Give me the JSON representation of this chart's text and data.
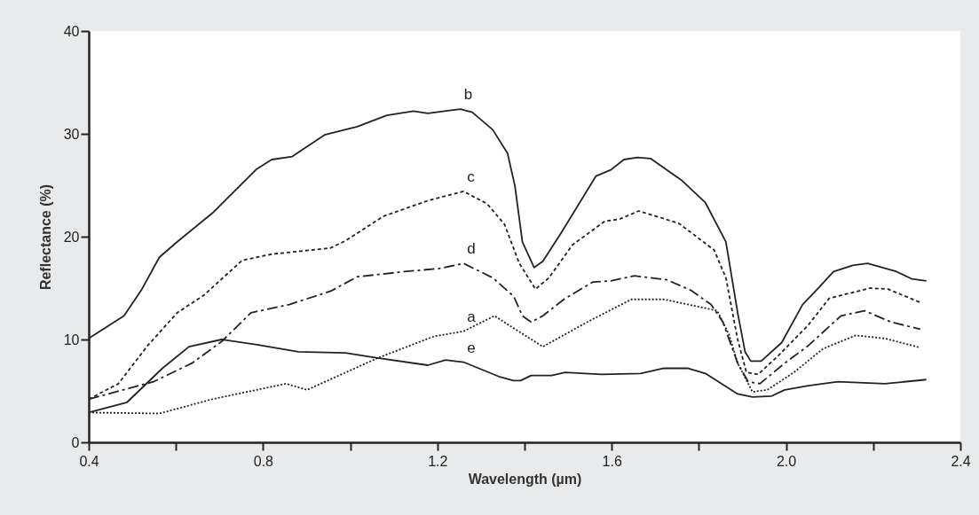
{
  "chart_data": {
    "type": "line",
    "xlabel": "Wavelength (µm)",
    "ylabel": "Reflectance (%)",
    "xlim": [
      0.4,
      2.4
    ],
    "ylim": [
      0,
      40
    ],
    "xticks": [
      0.4,
      {
        "value": 0.6,
        "label": null
      },
      0.8,
      {
        "value": 1.0,
        "label": null
      },
      1.2,
      {
        "value": 1.4,
        "label": null
      },
      1.6,
      {
        "value": 1.8,
        "label": null
      },
      {
        "value": 2.0,
        "label": "2.0"
      },
      {
        "value": 2.2,
        "label": null
      },
      {
        "value": 2.4,
        "label": "2.4"
      }
    ],
    "yticks": [
      0,
      10,
      20,
      30,
      40
    ],
    "grid": false,
    "marker": "none",
    "series": [
      {
        "name": "b",
        "color": "#222222",
        "line_style": "solid",
        "x": [
          0.4,
          0.481,
          0.522,
          0.562,
          0.603,
          0.684,
          0.786,
          0.82,
          0.867,
          0.941,
          1.016,
          1.084,
          1.145,
          1.178,
          1.232,
          1.253,
          1.28,
          1.327,
          1.361,
          1.378,
          1.395,
          1.422,
          1.442,
          1.483,
          1.564,
          1.598,
          1.628,
          1.659,
          1.689,
          1.76,
          1.815,
          1.862,
          1.889,
          1.906,
          1.919,
          1.943,
          1.99,
          2.038,
          2.072,
          2.109,
          2.153,
          2.187,
          2.254,
          2.288,
          2.322
        ],
        "values": [
          10.1,
          12.3,
          14.9,
          18.0,
          19.5,
          22.3,
          26.6,
          27.5,
          27.8,
          29.9,
          30.7,
          31.8,
          32.2,
          32.0,
          32.3,
          32.4,
          32.1,
          30.4,
          28.1,
          24.9,
          19.5,
          17.0,
          17.6,
          20.3,
          25.9,
          26.5,
          27.5,
          27.7,
          27.6,
          25.5,
          23.3,
          19.5,
          12.6,
          8.8,
          7.9,
          7.9,
          9.7,
          13.4,
          14.9,
          16.6,
          17.2,
          17.4,
          16.6,
          15.9,
          15.7
        ]
      },
      {
        "name": "c",
        "color": "#222222",
        "line_style": "dashed",
        "x": [
          0.4,
          0.468,
          0.535,
          0.603,
          0.664,
          0.752,
          0.82,
          0.955,
          0.989,
          1.077,
          1.178,
          1.26,
          1.314,
          1.354,
          1.388,
          1.425,
          1.456,
          1.51,
          1.584,
          1.618,
          1.662,
          1.754,
          1.835,
          1.862,
          1.889,
          1.909,
          1.936,
          1.984,
          2.051,
          2.099,
          2.193,
          2.234,
          2.308
        ],
        "values": [
          4.2,
          5.7,
          9.4,
          12.6,
          14.3,
          17.7,
          18.3,
          18.9,
          19.6,
          22.0,
          23.5,
          24.4,
          23.2,
          21.2,
          17.4,
          14.9,
          16.0,
          19.2,
          21.5,
          21.7,
          22.5,
          21.3,
          18.7,
          16.0,
          10.0,
          6.8,
          6.6,
          8.5,
          11.4,
          14.0,
          15.0,
          14.9,
          13.6
        ]
      },
      {
        "name": "d",
        "color": "#222222",
        "line_style": "dashdot",
        "x": [
          0.4,
          0.549,
          0.637,
          0.705,
          0.772,
          0.86,
          0.955,
          1.016,
          1.124,
          1.205,
          1.26,
          1.327,
          1.375,
          1.395,
          1.415,
          1.442,
          1.49,
          1.557,
          1.598,
          1.652,
          1.727,
          1.781,
          1.828,
          1.855,
          1.889,
          1.913,
          1.94,
          1.997,
          2.051,
          2.126,
          2.18,
          2.241,
          2.308
        ],
        "values": [
          4.2,
          5.9,
          7.7,
          9.8,
          12.6,
          13.4,
          14.7,
          16.1,
          16.6,
          16.9,
          17.4,
          16.0,
          14.2,
          12.3,
          11.7,
          12.3,
          13.9,
          15.6,
          15.7,
          16.2,
          15.8,
          14.8,
          13.4,
          11.7,
          7.7,
          5.9,
          5.7,
          7.7,
          9.4,
          12.3,
          12.8,
          11.7,
          11.0
        ]
      },
      {
        "name": "a",
        "color": "#222222",
        "line_style": "dotted",
        "x": [
          0.4,
          0.562,
          0.684,
          0.853,
          0.901,
          1.063,
          1.192,
          1.26,
          1.331,
          1.375,
          1.442,
          1.544,
          1.645,
          1.72,
          1.842,
          1.869,
          1.889,
          1.923,
          1.957,
          2.018,
          2.085,
          2.16,
          2.227,
          2.308
        ],
        "values": [
          2.9,
          2.8,
          4.2,
          5.7,
          5.1,
          8.2,
          10.3,
          10.8,
          12.3,
          11.1,
          9.3,
          11.7,
          13.9,
          13.9,
          12.8,
          10.5,
          7.7,
          4.9,
          5.1,
          6.8,
          9.1,
          10.4,
          10.1,
          9.2
        ]
      },
      {
        "name": "e",
        "color": "#222222",
        "line_style": "solid",
        "x": [
          0.4,
          0.488,
          0.569,
          0.63,
          0.705,
          0.786,
          0.881,
          0.989,
          1.063,
          1.178,
          1.219,
          1.26,
          1.341,
          1.375,
          1.391,
          1.415,
          1.462,
          1.493,
          1.577,
          1.666,
          1.72,
          1.774,
          1.815,
          1.889,
          1.923,
          1.967,
          1.997,
          2.051,
          2.119,
          2.166,
          2.227,
          2.322
        ],
        "values": [
          2.9,
          3.9,
          7.2,
          9.3,
          10.0,
          9.5,
          8.8,
          8.7,
          8.2,
          7.5,
          8.0,
          7.8,
          6.4,
          6.0,
          6.0,
          6.5,
          6.5,
          6.8,
          6.6,
          6.7,
          7.2,
          7.2,
          6.7,
          4.7,
          4.4,
          4.5,
          5.1,
          5.5,
          5.9,
          5.8,
          5.7,
          6.1
        ]
      }
    ]
  }
}
